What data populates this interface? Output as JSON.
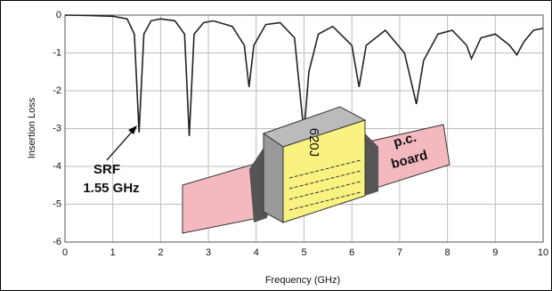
{
  "chart_data": {
    "type": "line",
    "x_label": "Frequency (GHz)",
    "y_label": "Insertion Loss",
    "x": [
      0,
      0.5,
      1.0,
      1.3,
      1.45,
      1.55,
      1.65,
      1.8,
      2.0,
      2.3,
      2.5,
      2.6,
      2.7,
      2.9,
      3.1,
      3.5,
      3.75,
      3.85,
      3.95,
      4.2,
      4.5,
      4.8,
      4.95,
      5.0,
      5.1,
      5.3,
      5.6,
      6.0,
      6.15,
      6.3,
      6.7,
      7.1,
      7.35,
      7.5,
      7.8,
      8.1,
      8.4,
      8.5,
      8.7,
      9.0,
      9.3,
      9.45,
      9.6,
      9.8,
      10
    ],
    "values": [
      0,
      -0.01,
      -0.03,
      -0.1,
      -0.5,
      -3.1,
      -0.5,
      -0.15,
      -0.1,
      -0.15,
      -0.5,
      -3.2,
      -0.5,
      -0.2,
      -0.15,
      -0.3,
      -0.8,
      -1.9,
      -0.8,
      -0.25,
      -0.2,
      -0.6,
      -2.5,
      -3.1,
      -1.5,
      -0.5,
      -0.3,
      -0.8,
      -1.9,
      -0.8,
      -0.4,
      -1.0,
      -2.35,
      -1.2,
      -0.5,
      -0.4,
      -0.8,
      -1.15,
      -0.6,
      -0.5,
      -0.8,
      -1.05,
      -0.7,
      -0.4,
      -0.35
    ],
    "color": "#222222",
    "xlim": [
      0,
      10
    ],
    "xticks": [
      0,
      1,
      2,
      3,
      4,
      5,
      6,
      7,
      8,
      9,
      10
    ],
    "ylim": [
      -6,
      0
    ],
    "yticks": [
      0,
      -1,
      -2,
      -3,
      -4,
      -5,
      -6
    ],
    "grid": true,
    "annotation": [
      "SRF",
      "1.55 GHz"
    ],
    "illustration": {
      "chip_label": "620J",
      "board_label": [
        "p.c.",
        "board"
      ]
    }
  }
}
